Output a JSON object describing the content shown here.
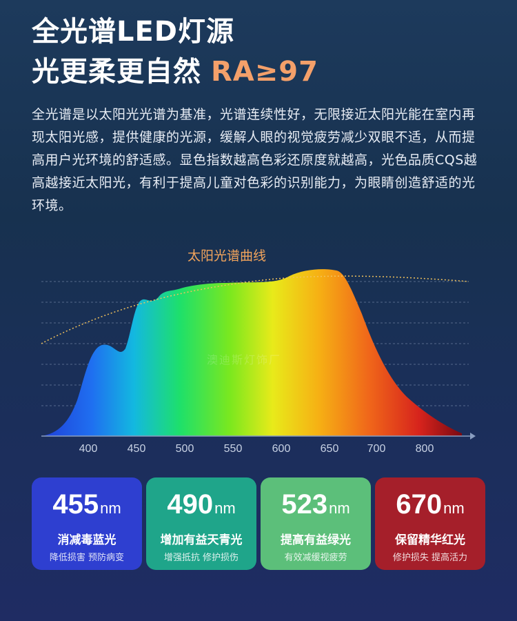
{
  "header": {
    "title_line1": "全光谱LED灯源",
    "title_line2_white": "光更柔更自然",
    "title_line2_orange": "RA≥97"
  },
  "description": "全光谱是以太阳光光谱为基准，光谱连续性好，无限接近太阳光能在室内再现太阳光感，提供健康的光源，缓解人眼的视觉疲劳减少双眼不适，从而提高用户光环境的舒适感。显色指数越高色彩还原度就越高，光色品质CQS越高越接近太阳光，有利于提高儿童对色彩的识别能力，为眼睛创造舒适的光环境。",
  "chart_data": {
    "type": "area",
    "title": "太阳光谱曲线",
    "x_ticks": [
      "400",
      "450",
      "500",
      "550",
      "600",
      "650",
      "700",
      "800"
    ],
    "grid": true
  },
  "watermark": "澳迪斯灯饰厂",
  "cards": [
    {
      "value": "455",
      "unit": "nm",
      "title": "消减毒蓝光",
      "subtitle": "降低损害 预防病变",
      "color": "#2e3fd0"
    },
    {
      "value": "490",
      "unit": "nm",
      "title": "增加有益天青光",
      "subtitle": "增强抵抗 修护损伤",
      "color": "#1fa58a"
    },
    {
      "value": "523",
      "unit": "nm",
      "title": "提高有益绿光",
      "subtitle": "有效减缓视疲劳",
      "color": "#5cbf7a"
    },
    {
      "value": "670",
      "unit": "nm",
      "title": "保留精华红光",
      "subtitle": "修护损失 提高活力",
      "color": "#a51f2a"
    }
  ]
}
